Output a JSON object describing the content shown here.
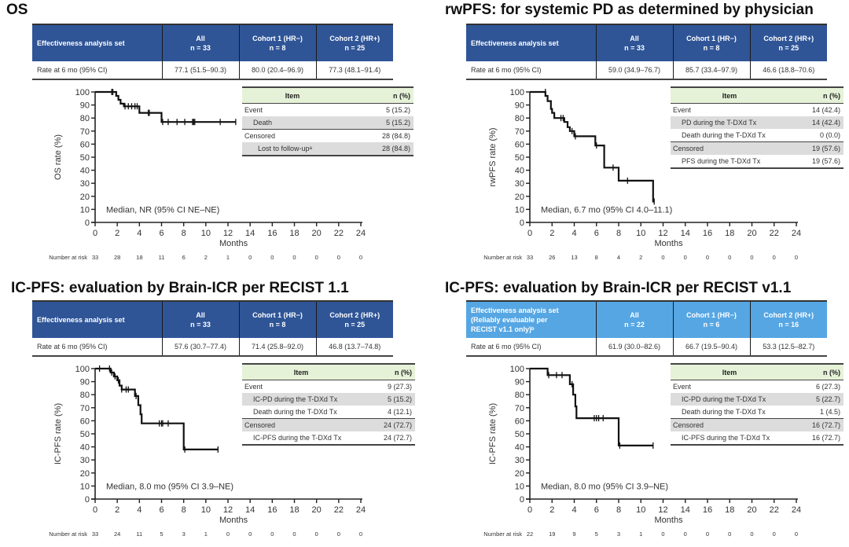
{
  "colors": {
    "header_dark_blue": "#2f5597",
    "header_light_blue": "#56a6e3",
    "item_header_green": "#e6f2d8",
    "shaded_row": "#dcdcdc",
    "curve": "#111111"
  },
  "panels": [
    {
      "title": "OS",
      "header_color": "#2f5597",
      "summary": {
        "headers": [
          {
            "line1": "Effectiveness analysis set",
            "line2": "",
            "line3": ""
          },
          {
            "line1": "All",
            "line2": "n = 33",
            "line3": ""
          },
          {
            "line1": "Cohort 1 (HR−)",
            "line2": "n = 8",
            "line3": ""
          },
          {
            "line1": "Cohort 2 (HR+)",
            "line2": "n = 25",
            "line3": ""
          }
        ],
        "row": [
          "Rate at 6 mo (95% CI)",
          "77.1 (51.5–90.3)",
          "80.0 (20.4–96.9)",
          "77.3 (48.1–91.4)"
        ]
      },
      "items": {
        "header": [
          "Item",
          "n (%)"
        ],
        "rows": [
          {
            "label": "Event",
            "n": "5 (15.2)",
            "indent": 0,
            "shade": false,
            "sep": false
          },
          {
            "label": "Death",
            "n": "5 (15.2)",
            "indent": 1,
            "shade": true,
            "sep": false
          },
          {
            "label": "Censored",
            "n": "28 (84.8)",
            "indent": 0,
            "shade": false,
            "sep": true
          },
          {
            "label": "Lost to follow-upᵃ",
            "n": "28 (84.8)",
            "indent": 2,
            "shade": true,
            "sep": false
          }
        ]
      }
    },
    {
      "title": "rwPFS: for systemic PD as determined by physician",
      "header_color": "#2f5597",
      "summary": {
        "headers": [
          {
            "line1": "Effectiveness analysis set",
            "line2": "",
            "line3": ""
          },
          {
            "line1": "All",
            "line2": "n = 33",
            "line3": ""
          },
          {
            "line1": "Cohort 1 (HR−)",
            "line2": "n = 8",
            "line3": ""
          },
          {
            "line1": "Cohort 2 (HR+)",
            "line2": "n = 25",
            "line3": ""
          }
        ],
        "row": [
          "Rate at 6 mo (95% CI)",
          "59.0 (34.9–76.7)",
          "85.7 (33.4–97.9)",
          "46.6 (18.8–70.6)"
        ]
      },
      "items": {
        "header": [
          "Item",
          "n (%)"
        ],
        "rows": [
          {
            "label": "Event",
            "n": "14 (42.4)",
            "indent": 0,
            "shade": false,
            "sep": false
          },
          {
            "label": "PD during the T-DXd Tx",
            "n": "14 (42.4)",
            "indent": 1,
            "shade": true,
            "sep": false
          },
          {
            "label": "Death during the T-DXd Tx",
            "n": "0 (0.0)",
            "indent": 1,
            "shade": false,
            "sep": false
          },
          {
            "label": "Censored",
            "n": "19 (57.6)",
            "indent": 0,
            "shade": true,
            "sep": true
          },
          {
            "label": "PFS during the T-DXd Tx",
            "n": "19 (57.6)",
            "indent": 1,
            "shade": false,
            "sep": false
          }
        ]
      }
    },
    {
      "title": "IC-PFS: evaluation by Brain-ICR per RECIST 1.1",
      "header_color": "#2f5597",
      "summary": {
        "headers": [
          {
            "line1": "Effectiveness analysis set",
            "line2": "",
            "line3": ""
          },
          {
            "line1": "All",
            "line2": "n = 33",
            "line3": ""
          },
          {
            "line1": "Cohort 1 (HR−)",
            "line2": "n = 8",
            "line3": ""
          },
          {
            "line1": "Cohort 2 (HR+)",
            "line2": "n = 25",
            "line3": ""
          }
        ],
        "row": [
          "Rate at 6 mo (95% CI)",
          "57.6 (30.7–77.4)",
          "71.4 (25.8–92.0)",
          "46.8 (13.7–74.8)"
        ]
      },
      "items": {
        "header": [
          "Item",
          "n (%)"
        ],
        "rows": [
          {
            "label": "Event",
            "n": "9 (27.3)",
            "indent": 0,
            "shade": false,
            "sep": false
          },
          {
            "label": "IC-PD during the T-DXd Tx",
            "n": "5 (15.2)",
            "indent": 1,
            "shade": true,
            "sep": false
          },
          {
            "label": "Death during the T-DXd Tx",
            "n": "4 (12.1)",
            "indent": 1,
            "shade": false,
            "sep": false
          },
          {
            "label": "Censored",
            "n": "24 (72.7)",
            "indent": 0,
            "shade": true,
            "sep": true
          },
          {
            "label": "IC-PFS during the T-DXd Tx",
            "n": "24 (72.7)",
            "indent": 1,
            "shade": false,
            "sep": false
          }
        ]
      }
    },
    {
      "title": "IC-PFS: evaluation by Brain-ICR per RECIST v1.1",
      "header_color": "#56a6e3",
      "summary": {
        "headers": [
          {
            "line1": "Effectiveness analysis set",
            "line2": "(Reliably evaluable per",
            "line3": "RECIST v1.1 only)ᵇ"
          },
          {
            "line1": "All",
            "line2": "n = 22",
            "line3": ""
          },
          {
            "line1": "Cohort 1 (HR−)",
            "line2": "n = 6",
            "line3": ""
          },
          {
            "line1": "Cohort 2 (HR+)",
            "line2": "n = 16",
            "line3": ""
          }
        ],
        "row": [
          "Rate at 6 mo (95% CI)",
          "61.9 (30.0–82.6)",
          "66.7 (19.5–90.4)",
          "53.3 (12.5–82.7)"
        ]
      },
      "items": {
        "header": [
          "Item",
          "n (%)"
        ],
        "rows": [
          {
            "label": "Event",
            "n": "6 (27.3)",
            "indent": 0,
            "shade": false,
            "sep": false
          },
          {
            "label": "IC-PD during the T-DXd Tx",
            "n": "5 (22.7)",
            "indent": 1,
            "shade": true,
            "sep": false
          },
          {
            "label": "Death during the T-DXd Tx",
            "n": "1 (4.5)",
            "indent": 1,
            "shade": false,
            "sep": false
          },
          {
            "label": "Censored",
            "n": "16 (72.7)",
            "indent": 0,
            "shade": true,
            "sep": true
          },
          {
            "label": "IC-PFS during the T-DXd Tx",
            "n": "16 (72.7)",
            "indent": 1,
            "shade": false,
            "sep": false
          }
        ]
      }
    }
  ],
  "chart_data": [
    {
      "type": "line",
      "subtype": "kaplan-meier",
      "title": "OS",
      "xlabel": "Months",
      "ylabel": "OS rate (%)",
      "xlim": [
        0,
        24
      ],
      "ylim": [
        0,
        100
      ],
      "xticks": [
        0,
        2,
        4,
        6,
        8,
        10,
        12,
        14,
        16,
        18,
        20,
        22,
        24
      ],
      "yticks": [
        0,
        10,
        20,
        30,
        40,
        50,
        60,
        70,
        80,
        90,
        100
      ],
      "grid": false,
      "annotation": "Median, NR (95% CI NE–NE)",
      "risk_label": "Number at risk",
      "number_at_risk": [
        33,
        28,
        18,
        11,
        6,
        2,
        1,
        0,
        0,
        0,
        0,
        0,
        0
      ],
      "steps": [
        [
          0,
          100
        ],
        [
          1.9,
          100
        ],
        [
          1.9,
          97
        ],
        [
          2.1,
          97
        ],
        [
          2.1,
          94
        ],
        [
          2.3,
          94
        ],
        [
          2.3,
          91
        ],
        [
          2.6,
          91
        ],
        [
          2.6,
          89
        ],
        [
          4.0,
          89
        ],
        [
          4.0,
          84
        ],
        [
          6.0,
          84
        ],
        [
          6.0,
          77
        ],
        [
          12.7,
          77
        ]
      ],
      "censors": [
        [
          1.5,
          100
        ],
        [
          1.6,
          100
        ],
        [
          2.7,
          89
        ],
        [
          3.0,
          89
        ],
        [
          3.3,
          89
        ],
        [
          3.6,
          89
        ],
        [
          3.8,
          89
        ],
        [
          4.8,
          84
        ],
        [
          4.9,
          84
        ],
        [
          6.1,
          77
        ],
        [
          6.6,
          77
        ],
        [
          7.4,
          77
        ],
        [
          8.1,
          77
        ],
        [
          8.8,
          77
        ],
        [
          8.9,
          77
        ],
        [
          9.0,
          77
        ],
        [
          11.3,
          77
        ],
        [
          12.7,
          77
        ]
      ]
    },
    {
      "type": "line",
      "subtype": "kaplan-meier",
      "title": "rwPFS: for systemic PD as determined by physician",
      "xlabel": "Months",
      "ylabel": "rwPFS rate (%)",
      "xlim": [
        0,
        24
      ],
      "ylim": [
        0,
        100
      ],
      "xticks": [
        0,
        2,
        4,
        6,
        8,
        10,
        12,
        14,
        16,
        18,
        20,
        22,
        24
      ],
      "yticks": [
        0,
        10,
        20,
        30,
        40,
        50,
        60,
        70,
        80,
        90,
        100
      ],
      "grid": false,
      "annotation": "Median, 6.7 mo (95% CI 4.0–11.1)",
      "risk_label": "Number at risk",
      "number_at_risk": [
        33,
        26,
        13,
        8,
        4,
        2,
        0,
        0,
        0,
        0,
        0,
        0,
        0
      ],
      "steps": [
        [
          0,
          100
        ],
        [
          1.4,
          100
        ],
        [
          1.4,
          97
        ],
        [
          1.6,
          97
        ],
        [
          1.6,
          93
        ],
        [
          1.9,
          93
        ],
        [
          1.9,
          87
        ],
        [
          2.0,
          87
        ],
        [
          2.0,
          84
        ],
        [
          2.2,
          84
        ],
        [
          2.2,
          80
        ],
        [
          3.1,
          80
        ],
        [
          3.1,
          77
        ],
        [
          3.4,
          77
        ],
        [
          3.4,
          73
        ],
        [
          3.6,
          73
        ],
        [
          3.6,
          70
        ],
        [
          4.0,
          70
        ],
        [
          4.0,
          66
        ],
        [
          5.9,
          66
        ],
        [
          5.9,
          59
        ],
        [
          6.7,
          59
        ],
        [
          6.7,
          42
        ],
        [
          8.0,
          42
        ],
        [
          8.0,
          32
        ],
        [
          11.1,
          32
        ],
        [
          11.1,
          16
        ],
        [
          11.2,
          16
        ]
      ],
      "censors": [
        [
          1.4,
          100
        ],
        [
          2.8,
          80
        ],
        [
          3.0,
          80
        ],
        [
          3.8,
          70
        ],
        [
          4.1,
          66
        ],
        [
          6.0,
          59
        ],
        [
          7.5,
          42
        ],
        [
          8.8,
          32
        ],
        [
          11.2,
          16
        ]
      ]
    },
    {
      "type": "line",
      "subtype": "kaplan-meier",
      "title": "IC-PFS: evaluation by Brain-ICR per RECIST 1.1",
      "xlabel": "Months",
      "ylabel": "IC-PFS rate (%)",
      "xlim": [
        0,
        24
      ],
      "ylim": [
        0,
        100
      ],
      "xticks": [
        0,
        2,
        4,
        6,
        8,
        10,
        12,
        14,
        16,
        18,
        20,
        22,
        24
      ],
      "yticks": [
        0,
        10,
        20,
        30,
        40,
        50,
        60,
        70,
        80,
        90,
        100
      ],
      "grid": false,
      "annotation": "Median, 8.0 mo (95% CI 3.9–NE)",
      "risk_label": "Number at risk",
      "number_at_risk": [
        33,
        24,
        11,
        5,
        3,
        1,
        0,
        0,
        0,
        0,
        0,
        0,
        0
      ],
      "steps": [
        [
          0,
          100
        ],
        [
          1.4,
          100
        ],
        [
          1.4,
          97
        ],
        [
          1.7,
          97
        ],
        [
          1.7,
          94
        ],
        [
          2.0,
          94
        ],
        [
          2.0,
          91
        ],
        [
          2.2,
          91
        ],
        [
          2.2,
          87
        ],
        [
          2.4,
          87
        ],
        [
          2.4,
          84
        ],
        [
          3.6,
          84
        ],
        [
          3.6,
          79
        ],
        [
          3.9,
          79
        ],
        [
          3.9,
          72
        ],
        [
          4.1,
          72
        ],
        [
          4.1,
          65
        ],
        [
          4.2,
          65
        ],
        [
          4.2,
          58
        ],
        [
          8.0,
          58
        ],
        [
          8.0,
          38
        ],
        [
          11.1,
          38
        ]
      ],
      "censors": [
        [
          0.4,
          100
        ],
        [
          1.3,
          100
        ],
        [
          1.5,
          97
        ],
        [
          1.8,
          94
        ],
        [
          2.1,
          91
        ],
        [
          2.4,
          84
        ],
        [
          2.8,
          84
        ],
        [
          3.0,
          84
        ],
        [
          3.7,
          79
        ],
        [
          5.8,
          58
        ],
        [
          6.0,
          58
        ],
        [
          6.1,
          58
        ],
        [
          6.6,
          58
        ],
        [
          8.1,
          38
        ],
        [
          11.1,
          38
        ]
      ]
    },
    {
      "type": "line",
      "subtype": "kaplan-meier",
      "title": "IC-PFS: evaluation by Brain-ICR per RECIST v1.1",
      "xlabel": "Months",
      "ylabel": "IC-PFS rate (%)",
      "xlim": [
        0,
        24
      ],
      "ylim": [
        0,
        100
      ],
      "xticks": [
        0,
        2,
        4,
        6,
        8,
        10,
        12,
        14,
        16,
        18,
        20,
        22,
        24
      ],
      "yticks": [
        0,
        10,
        20,
        30,
        40,
        50,
        60,
        70,
        80,
        90,
        100
      ],
      "grid": false,
      "annotation": "Median, 8.0 mo (95% CI 3.9–NE)",
      "risk_label": "Number at risk",
      "number_at_risk": [
        22,
        19,
        9,
        5,
        3,
        1,
        0,
        0,
        0,
        0,
        0,
        0,
        0
      ],
      "steps": [
        [
          0,
          100
        ],
        [
          1.6,
          100
        ],
        [
          1.6,
          95
        ],
        [
          3.6,
          95
        ],
        [
          3.6,
          88
        ],
        [
          3.9,
          88
        ],
        [
          3.9,
          80
        ],
        [
          4.1,
          80
        ],
        [
          4.1,
          71
        ],
        [
          4.2,
          71
        ],
        [
          4.2,
          62
        ],
        [
          8.0,
          62
        ],
        [
          8.0,
          41
        ],
        [
          11.1,
          41
        ]
      ],
      "censors": [
        [
          1.7,
          95
        ],
        [
          2.4,
          95
        ],
        [
          2.9,
          95
        ],
        [
          3.8,
          88
        ],
        [
          5.8,
          62
        ],
        [
          6.0,
          62
        ],
        [
          6.2,
          62
        ],
        [
          6.6,
          62
        ],
        [
          8.1,
          41
        ],
        [
          11.1,
          41
        ]
      ]
    }
  ]
}
